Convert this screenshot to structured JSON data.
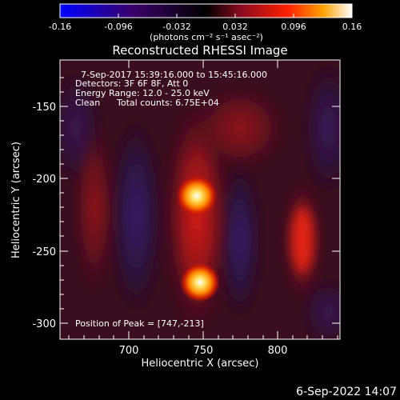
{
  "colorbar": {
    "ticks": [
      "-0.16",
      "-0.096",
      "-0.032",
      "0.032",
      "0.096",
      "0.16"
    ],
    "units": "(photons cm⁻² s⁻¹ asec⁻²)",
    "range": [
      -0.16,
      0.16
    ],
    "colormap": [
      "#0000ff",
      "#3a0068",
      "#000000",
      "#8a0a20",
      "#ff2000",
      "#ffa000",
      "#ffffff"
    ]
  },
  "title": "Reconstructed RHESSI Image",
  "info": {
    "line1": "7-Sep-2017 15:39:16.000 to 15:45:16.000",
    "line2": "Detectors: 3F 6F 8F, Att 0",
    "line3": "Energy Range: 12.0 - 25.0 keV",
    "line4_a": "Clean",
    "line4_b": "Total counts: 6.75E+04",
    "peak": "Position of Peak = [747,-213]"
  },
  "timestamp": "6-Sep-2022 14:07",
  "chart_data": {
    "type": "heatmap",
    "xlabel": "Heliocentric X (arcsec)",
    "ylabel": "Heliocentric Y (arcsec)",
    "xlim": [
      660,
      842
    ],
    "ylim": [
      -310,
      -125
    ],
    "xticks": [
      700,
      750,
      800
    ],
    "yticks": [
      -150,
      -200,
      -250,
      -300
    ],
    "sources": [
      {
        "x": 747,
        "y": -213,
        "value": 0.16
      },
      {
        "x": 749,
        "y": -270,
        "value": 0.15
      }
    ],
    "features": [
      {
        "kind": "positive band",
        "x": 745,
        "y_range": [
          -175,
          -310
        ],
        "value": 0.06
      },
      {
        "kind": "positive band",
        "x": 818,
        "y_range": [
          -215,
          -290
        ],
        "value": 0.07
      },
      {
        "kind": "negative band",
        "x": 710,
        "y_range": [
          -170,
          -300
        ],
        "value": -0.04
      },
      {
        "kind": "negative band",
        "x": 782,
        "y_range": [
          -215,
          -290
        ],
        "value": -0.05
      }
    ]
  }
}
